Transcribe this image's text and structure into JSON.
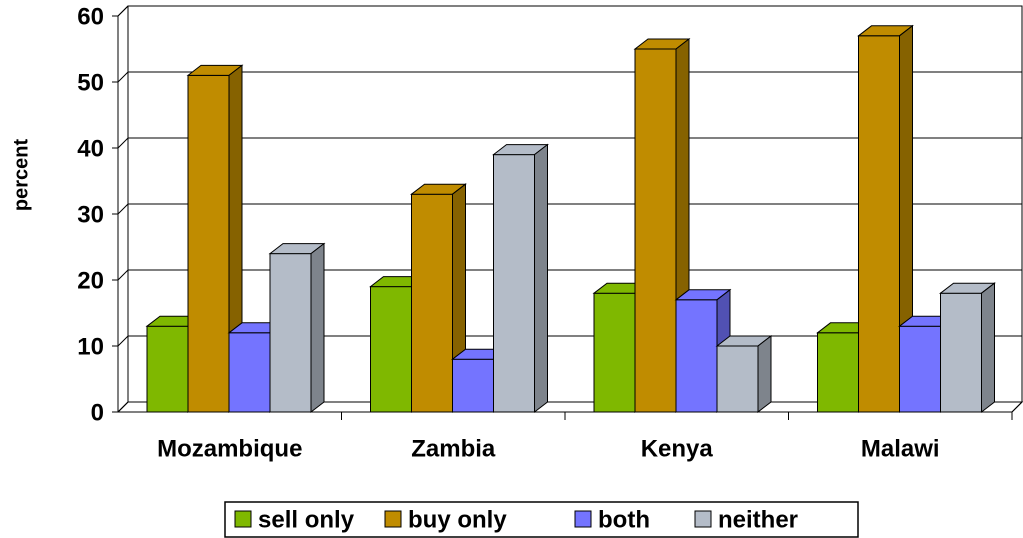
{
  "chart_data": {
    "type": "bar3d",
    "y_label": "percent",
    "categories": [
      "Mozambique",
      "Zambia",
      "Kenya",
      "Malawi"
    ],
    "series": [
      {
        "name": "sell only",
        "color": "#7fb800",
        "values": [
          13,
          19,
          18,
          12
        ]
      },
      {
        "name": "buy only",
        "color": "#c08c00",
        "values": [
          51,
          33,
          55,
          57
        ]
      },
      {
        "name": "both",
        "color": "#7474ff",
        "values": [
          12,
          8,
          17,
          13
        ]
      },
      {
        "name": "neither",
        "color": "#b4bcc8",
        "values": [
          24,
          39,
          10,
          18
        ]
      }
    ],
    "ylim": [
      0,
      60
    ],
    "yticks": [
      0,
      10,
      20,
      30,
      40,
      50,
      60
    ],
    "grid": true
  }
}
